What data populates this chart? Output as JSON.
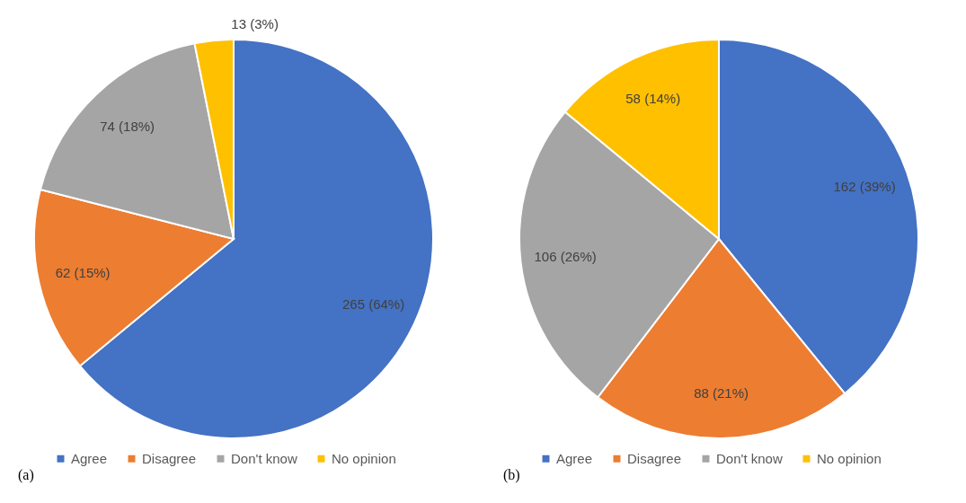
{
  "chart_data": [
    {
      "type": "pie",
      "title": "(a)",
      "categories": [
        "Agree",
        "Disagree",
        "Don't know",
        "No opinion"
      ],
      "values": [
        265,
        62,
        74,
        13
      ],
      "value_labels": [
        "265 (64%)",
        "62 (15%)",
        "74 (18%)",
        "13 (3%)"
      ],
      "colors": [
        "#4472c4",
        "#ed7d31",
        "#a5a5a5",
        "#ffc000"
      ],
      "legend": "bottom"
    },
    {
      "type": "pie",
      "title": "(b)",
      "categories": [
        "Agree",
        "Disagree",
        "Don't know",
        "No opinion"
      ],
      "values": [
        162,
        88,
        106,
        58
      ],
      "value_labels": [
        "162 (39%)",
        "88 (21%)",
        "106 (26%)",
        "58 (14%)"
      ],
      "colors": [
        "#4472c4",
        "#ed7d31",
        "#a5a5a5",
        "#ffc000"
      ],
      "legend": "bottom"
    }
  ]
}
